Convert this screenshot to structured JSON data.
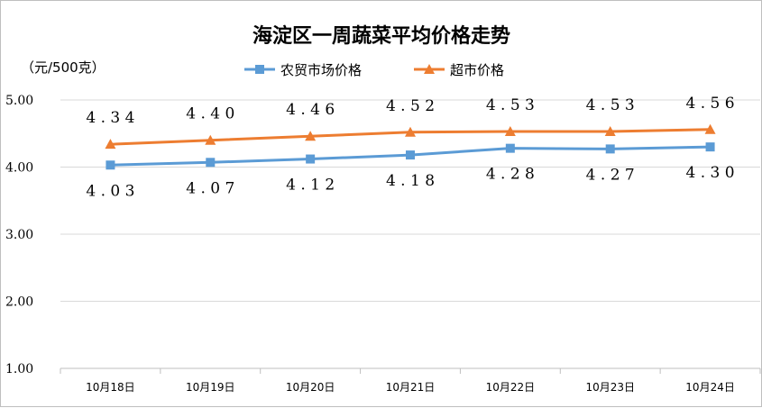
{
  "chart_data": {
    "type": "line",
    "title": "海淀区一周蔬菜平均价格走势",
    "ylabel": "（元/500克）",
    "ylim": [
      1.0,
      5.0
    ],
    "yticks": [
      "1.00",
      "2.00",
      "3.00",
      "4.00",
      "5.00"
    ],
    "categories": [
      "10月18日",
      "10月19日",
      "10月20日",
      "10月21日",
      "10月22日",
      "10月23日",
      "10月24日"
    ],
    "grid": true,
    "legend": "top-right",
    "series": [
      {
        "name": "农贸市场价格",
        "color": "#5b9bd5",
        "marker": "square",
        "values": [
          4.03,
          4.07,
          4.12,
          4.18,
          4.28,
          4.27,
          4.3
        ],
        "labels": [
          "4.03",
          "4.07",
          "4.12",
          "4.18",
          "4.28",
          "4.27",
          "4.30"
        ]
      },
      {
        "name": "超市价格",
        "color": "#ed7d31",
        "marker": "triangle",
        "values": [
          4.34,
          4.4,
          4.46,
          4.52,
          4.53,
          4.53,
          4.56
        ],
        "labels": [
          "4.34",
          "4.40",
          "4.46",
          "4.52",
          "4.53",
          "4.53",
          "4.56"
        ]
      }
    ]
  }
}
